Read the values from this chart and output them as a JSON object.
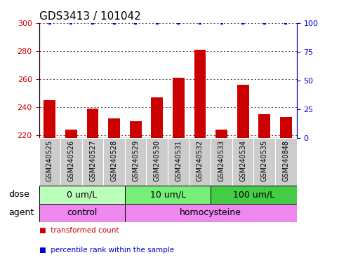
{
  "title": "GDS3413 / 101042",
  "samples": [
    "GSM240525",
    "GSM240526",
    "GSM240527",
    "GSM240528",
    "GSM240529",
    "GSM240530",
    "GSM240531",
    "GSM240532",
    "GSM240533",
    "GSM240534",
    "GSM240535",
    "GSM240848"
  ],
  "transformed_counts": [
    245,
    224,
    239,
    232,
    230,
    247,
    261,
    281,
    224,
    256,
    235,
    233
  ],
  "percentile_ranks": [
    100,
    100,
    100,
    100,
    100,
    100,
    100,
    100,
    100,
    100,
    100,
    100
  ],
  "ylim_left": [
    218,
    300
  ],
  "ylim_right": [
    0,
    100
  ],
  "yticks_left": [
    220,
    240,
    260,
    280,
    300
  ],
  "yticks_right": [
    0,
    25,
    50,
    75,
    100
  ],
  "bar_color": "#cc0000",
  "dot_color": "#0000cc",
  "bar_bottom": 218,
  "dose_groups": [
    {
      "label": "0 um/L",
      "start": 0,
      "end": 4
    },
    {
      "label": "10 um/L",
      "start": 4,
      "end": 8
    },
    {
      "label": "100 um/L",
      "start": 8,
      "end": 12
    }
  ],
  "dose_colors": [
    "#bbffbb",
    "#77ee77",
    "#44cc44"
  ],
  "agent_groups": [
    {
      "label": "control",
      "start": 0,
      "end": 4
    },
    {
      "label": "homocysteine",
      "start": 4,
      "end": 12
    }
  ],
  "agent_color": "#ee88ee",
  "dose_row_label": "dose",
  "agent_row_label": "agent",
  "label_bg": "#cccccc",
  "axis_color_left": "#cc0000",
  "axis_color_right": "#0000cc",
  "title_fontsize": 11,
  "tick_fontsize": 8,
  "sample_fontsize": 7,
  "group_fontsize": 9,
  "legend_color_bar": "#cc0000",
  "legend_color_dot": "#0000cc"
}
